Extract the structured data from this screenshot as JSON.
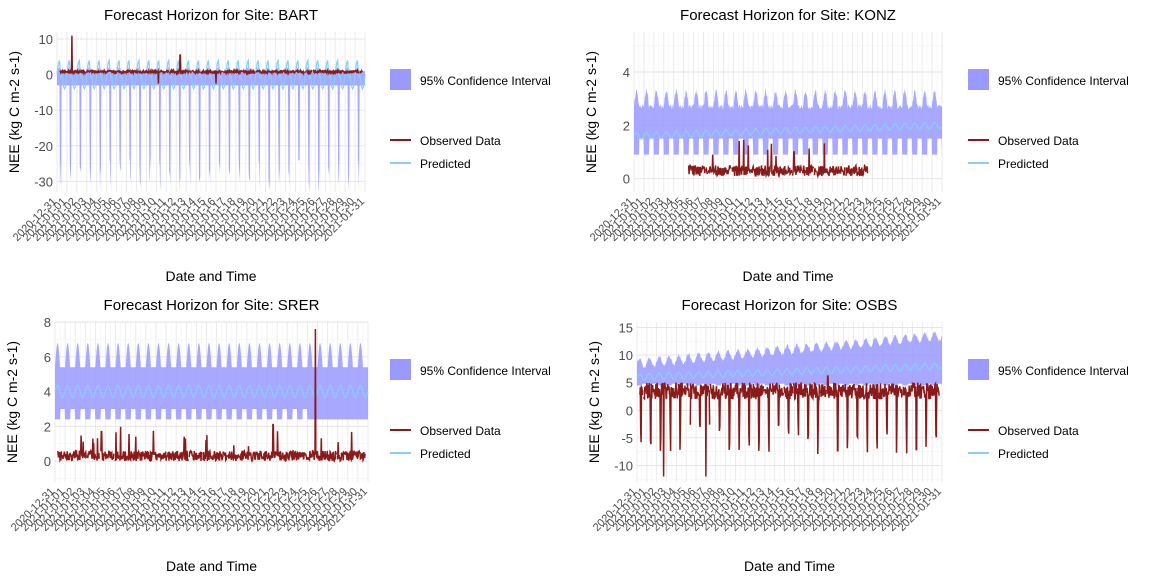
{
  "legend": {
    "ci_label": "95% Confidence Interval",
    "observed_label": "Observed Data",
    "predicted_label": "Predicted",
    "ci_color": "#9999ff",
    "observed_color": "#8b1a1a",
    "predicted_color": "#87cefa"
  },
  "chart_data": [
    {
      "type": "line",
      "title": "Forecast Horizon for Site: BART",
      "xlabel": "Date and Time",
      "ylabel": "NEE (kg C m-2 s-1)",
      "ylim": [
        -33,
        12
      ],
      "yticks": [
        -30,
        -20,
        -10,
        0,
        10
      ],
      "x_range": [
        "2020-12-31",
        "2021-01-31"
      ],
      "x_tick_labels": [
        "2020-12-31",
        "2021-01-01",
        "2021-01-02",
        "2021-01-03",
        "2021-01-04",
        "2021-01-05",
        "2021-01-06",
        "2021-01-07",
        "2021-01-08",
        "2021-01-09",
        "2021-01-10",
        "2021-01-11",
        "2021-01-12",
        "2021-01-13",
        "2021-01-14",
        "2021-01-15",
        "2021-01-16",
        "2021-01-17",
        "2021-01-18",
        "2021-01-19",
        "2021-01-20",
        "2021-01-21",
        "2021-01-22",
        "2021-01-23",
        "2021-01-24",
        "2021-01-25",
        "2021-01-26",
        "2021-01-27",
        "2021-01-28",
        "2021-01-29",
        "2021-01-30",
        "2021-01-31"
      ],
      "grid": true,
      "legend_position": "right",
      "series": [
        {
          "name": "95% Confidence Interval",
          "kind": "ribbon",
          "upper_min": 1.0,
          "upper_max": 2.0,
          "lower_min": -33,
          "lower_max": -3,
          "daily_period_days": 1
        },
        {
          "name": "Observed Data",
          "kind": "line",
          "baseline": 0.8,
          "noise": 0.8,
          "spikes": [
            [
              1.5,
              11
            ],
            [
              12.4,
              5.5
            ],
            [
              10.2,
              -2.5
            ],
            [
              16.0,
              -2.5
            ]
          ]
        },
        {
          "name": "Predicted",
          "kind": "line",
          "mean": 0,
          "amplitude": 4,
          "daily_period_days": 1
        }
      ]
    },
    {
      "type": "line",
      "title": "Forecast Horizon for Site: KONZ",
      "xlabel": "Date and Time",
      "ylabel": "NEE (kg C m-2 s-1)",
      "ylim": [
        -0.5,
        5.5
      ],
      "yticks": [
        0,
        2,
        4
      ],
      "x_range": [
        "2020-12-31",
        "2021-01-31"
      ],
      "x_tick_labels": [
        "2020-12-31",
        "2021-01-01",
        "2021-01-02",
        "2021-01-03",
        "2021-01-04",
        "2021-01-05",
        "2021-01-06",
        "2021-01-07",
        "2021-01-08",
        "2021-01-09",
        "2021-01-10",
        "2021-01-11",
        "2021-01-12",
        "2021-01-13",
        "2021-01-14",
        "2021-01-15",
        "2021-01-16",
        "2021-01-17",
        "2021-01-18",
        "2021-01-19",
        "2021-01-20",
        "2021-01-21",
        "2021-01-22",
        "2021-01-23",
        "2021-01-24",
        "2021-01-25",
        "2021-01-26",
        "2021-01-27",
        "2021-01-28",
        "2021-01-29",
        "2021-01-30",
        "2021-01-31"
      ],
      "grid": true,
      "legend_position": "right",
      "series": [
        {
          "name": "95% Confidence Interval",
          "kind": "ribbon",
          "upper_min": 2.7,
          "upper_max": 3.3,
          "lower_min": 0.9,
          "lower_max": 1.5,
          "daily_period_days": 1
        },
        {
          "name": "Observed Data",
          "kind": "line",
          "start_day": 5.5,
          "end_day": 23.5,
          "baseline": 0.3,
          "noise": 0.4,
          "spikes": [
            [
              7.2,
              1.7
            ],
            [
              17.3,
              2.0
            ],
            [
              16.1,
              1.0
            ]
          ]
        },
        {
          "name": "Predicted",
          "kind": "line",
          "mean_start": 1.6,
          "mean_end": 2.0,
          "amplitude": 0.12,
          "daily_period_days": 1
        }
      ]
    },
    {
      "type": "line",
      "title": "Forecast Horizon for Site: SRER",
      "xlabel": "Date and Time",
      "ylabel": "NEE (kg C m-2 s-1)",
      "ylim": [
        -1.2,
        8
      ],
      "yticks": [
        0,
        2,
        4,
        6,
        8
      ],
      "x_range": [
        "2020-12-31",
        "2021-01-31"
      ],
      "x_tick_labels": [
        "2020-12-31",
        "2021-01-01",
        "2021-01-02",
        "2021-01-03",
        "2021-01-04",
        "2021-01-05",
        "2021-01-06",
        "2021-01-07",
        "2021-01-08",
        "2021-01-09",
        "2021-01-10",
        "2021-01-11",
        "2021-01-12",
        "2021-01-13",
        "2021-01-14",
        "2021-01-15",
        "2021-01-16",
        "2021-01-17",
        "2021-01-18",
        "2021-01-19",
        "2021-01-20",
        "2021-01-21",
        "2021-01-22",
        "2021-01-23",
        "2021-01-24",
        "2021-01-25",
        "2021-01-26",
        "2021-01-27",
        "2021-01-28",
        "2021-01-29",
        "2021-01-30",
        "2021-01-31"
      ],
      "grid": true,
      "legend_position": "right",
      "series": [
        {
          "name": "95% Confidence Interval",
          "kind": "ribbon",
          "upper_min": 5.4,
          "upper_max": 6.8,
          "lower_min": 2.4,
          "lower_max": 3.0,
          "daily_period_days": 1
        },
        {
          "name": "Observed Data",
          "kind": "line",
          "baseline": 0.3,
          "noise": 0.6,
          "spikes": [
            [
              25.8,
              7.6
            ],
            [
              21.6,
              2.1
            ],
            [
              4.6,
              1.7
            ]
          ]
        },
        {
          "name": "Predicted",
          "kind": "line",
          "mean": 4.0,
          "amplitude": 0.35,
          "daily_period_days": 1
        }
      ]
    },
    {
      "type": "line",
      "title": "Forecast Horizon for Site: OSBS",
      "xlabel": "Date and Time",
      "ylabel": "NEE (kg C m-2 s-1)",
      "ylim": [
        -13,
        16
      ],
      "yticks": [
        -10,
        -5,
        0,
        5,
        10,
        15
      ],
      "x_range": [
        "2020-12-31",
        "2021-01-31"
      ],
      "x_tick_labels": [
        "2020-12-31",
        "2021-01-01",
        "2021-01-02",
        "2021-01-03",
        "2021-01-04",
        "2021-01-05",
        "2021-01-06",
        "2021-01-07",
        "2021-01-08",
        "2021-01-09",
        "2021-01-10",
        "2021-01-11",
        "2021-01-12",
        "2021-01-13",
        "2021-01-14",
        "2021-01-15",
        "2021-01-16",
        "2021-01-17",
        "2021-01-18",
        "2021-01-19",
        "2021-01-20",
        "2021-01-21",
        "2021-01-22",
        "2021-01-23",
        "2021-01-24",
        "2021-01-25",
        "2021-01-26",
        "2021-01-27",
        "2021-01-28",
        "2021-01-29",
        "2021-01-30",
        "2021-01-31"
      ],
      "grid": true,
      "legend_position": "right",
      "series": [
        {
          "name": "95% Confidence Interval",
          "kind": "ribbon",
          "upper_start": 8.5,
          "upper_end": 13.5,
          "lower_start": 4.5,
          "lower_end": 4.5,
          "daily_period_days": 1
        },
        {
          "name": "Observed Data",
          "kind": "line",
          "baseline": 3.0,
          "dip_min": -8,
          "noise": 1.2,
          "spikes": [
            [
              2.7,
              -12
            ],
            [
              7.0,
              -12
            ],
            [
              19.4,
              6.2
            ]
          ]
        },
        {
          "name": "Predicted",
          "kind": "line",
          "mean_start": 6.0,
          "mean_end": 8.0,
          "amplitude": 0.6,
          "daily_period_days": 1
        }
      ]
    }
  ]
}
